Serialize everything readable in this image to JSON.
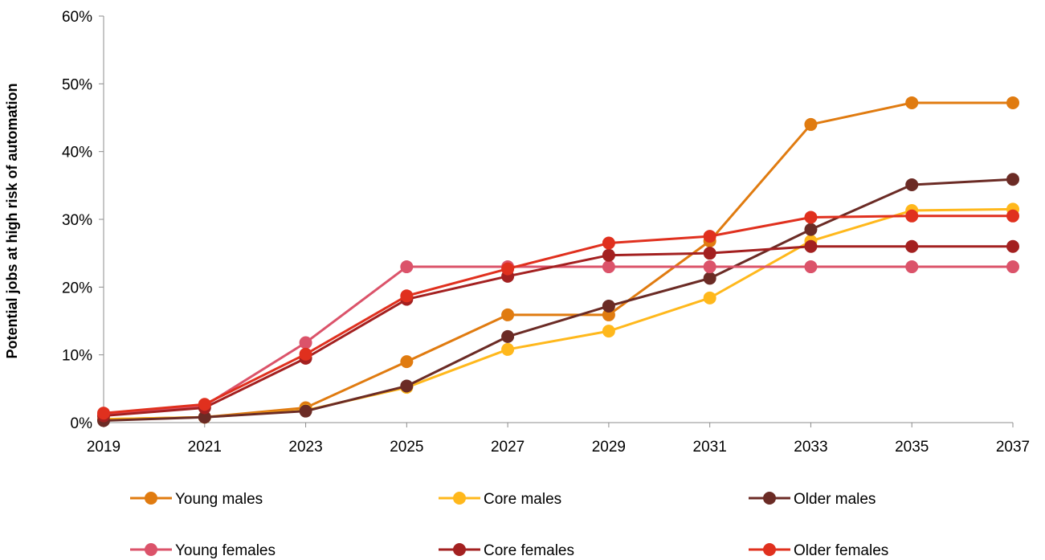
{
  "chart_data": {
    "type": "line",
    "title": "",
    "xlabel": "",
    "ylabel": "Potential jobs at high risk of automation",
    "x": [
      "2019",
      "2021",
      "2023",
      "2025",
      "2027",
      "2029",
      "2031",
      "2033",
      "2035",
      "2037"
    ],
    "ylim": [
      0,
      60
    ],
    "yticks": [
      0,
      10,
      20,
      30,
      40,
      50,
      60
    ],
    "ytick_labels": [
      "0%",
      "10%",
      "20%",
      "30%",
      "40%",
      "50%",
      "60%"
    ],
    "grid": false,
    "legend": "bottom",
    "series": [
      {
        "name": "Young males",
        "color": "#E07B10",
        "values": [
          0.5,
          0.8,
          2.2,
          9.0,
          15.9,
          15.9,
          26.8,
          44.0,
          47.2,
          47.2
        ]
      },
      {
        "name": "Core males",
        "color": "#FFB81C",
        "values": [
          0.5,
          0.8,
          1.8,
          5.2,
          10.8,
          13.5,
          18.4,
          26.8,
          31.3,
          31.5
        ]
      },
      {
        "name": "Older males",
        "color": "#6B2B25",
        "values": [
          0.3,
          0.8,
          1.7,
          5.4,
          12.7,
          17.2,
          21.3,
          28.5,
          35.1,
          35.9
        ]
      },
      {
        "name": "Young females",
        "color": "#DB536A",
        "values": [
          1.1,
          2.5,
          11.8,
          23.0,
          23.0,
          23.0,
          23.0,
          23.0,
          23.0,
          23.0
        ]
      },
      {
        "name": "Core females",
        "color": "#A32020",
        "values": [
          1.0,
          2.2,
          9.5,
          18.2,
          21.6,
          24.7,
          25.0,
          26.0,
          26.0,
          26.0
        ]
      },
      {
        "name": "Older females",
        "color": "#E0301E",
        "values": [
          1.4,
          2.7,
          10.1,
          18.7,
          22.7,
          26.5,
          27.5,
          30.3,
          30.5,
          30.5
        ]
      }
    ]
  }
}
